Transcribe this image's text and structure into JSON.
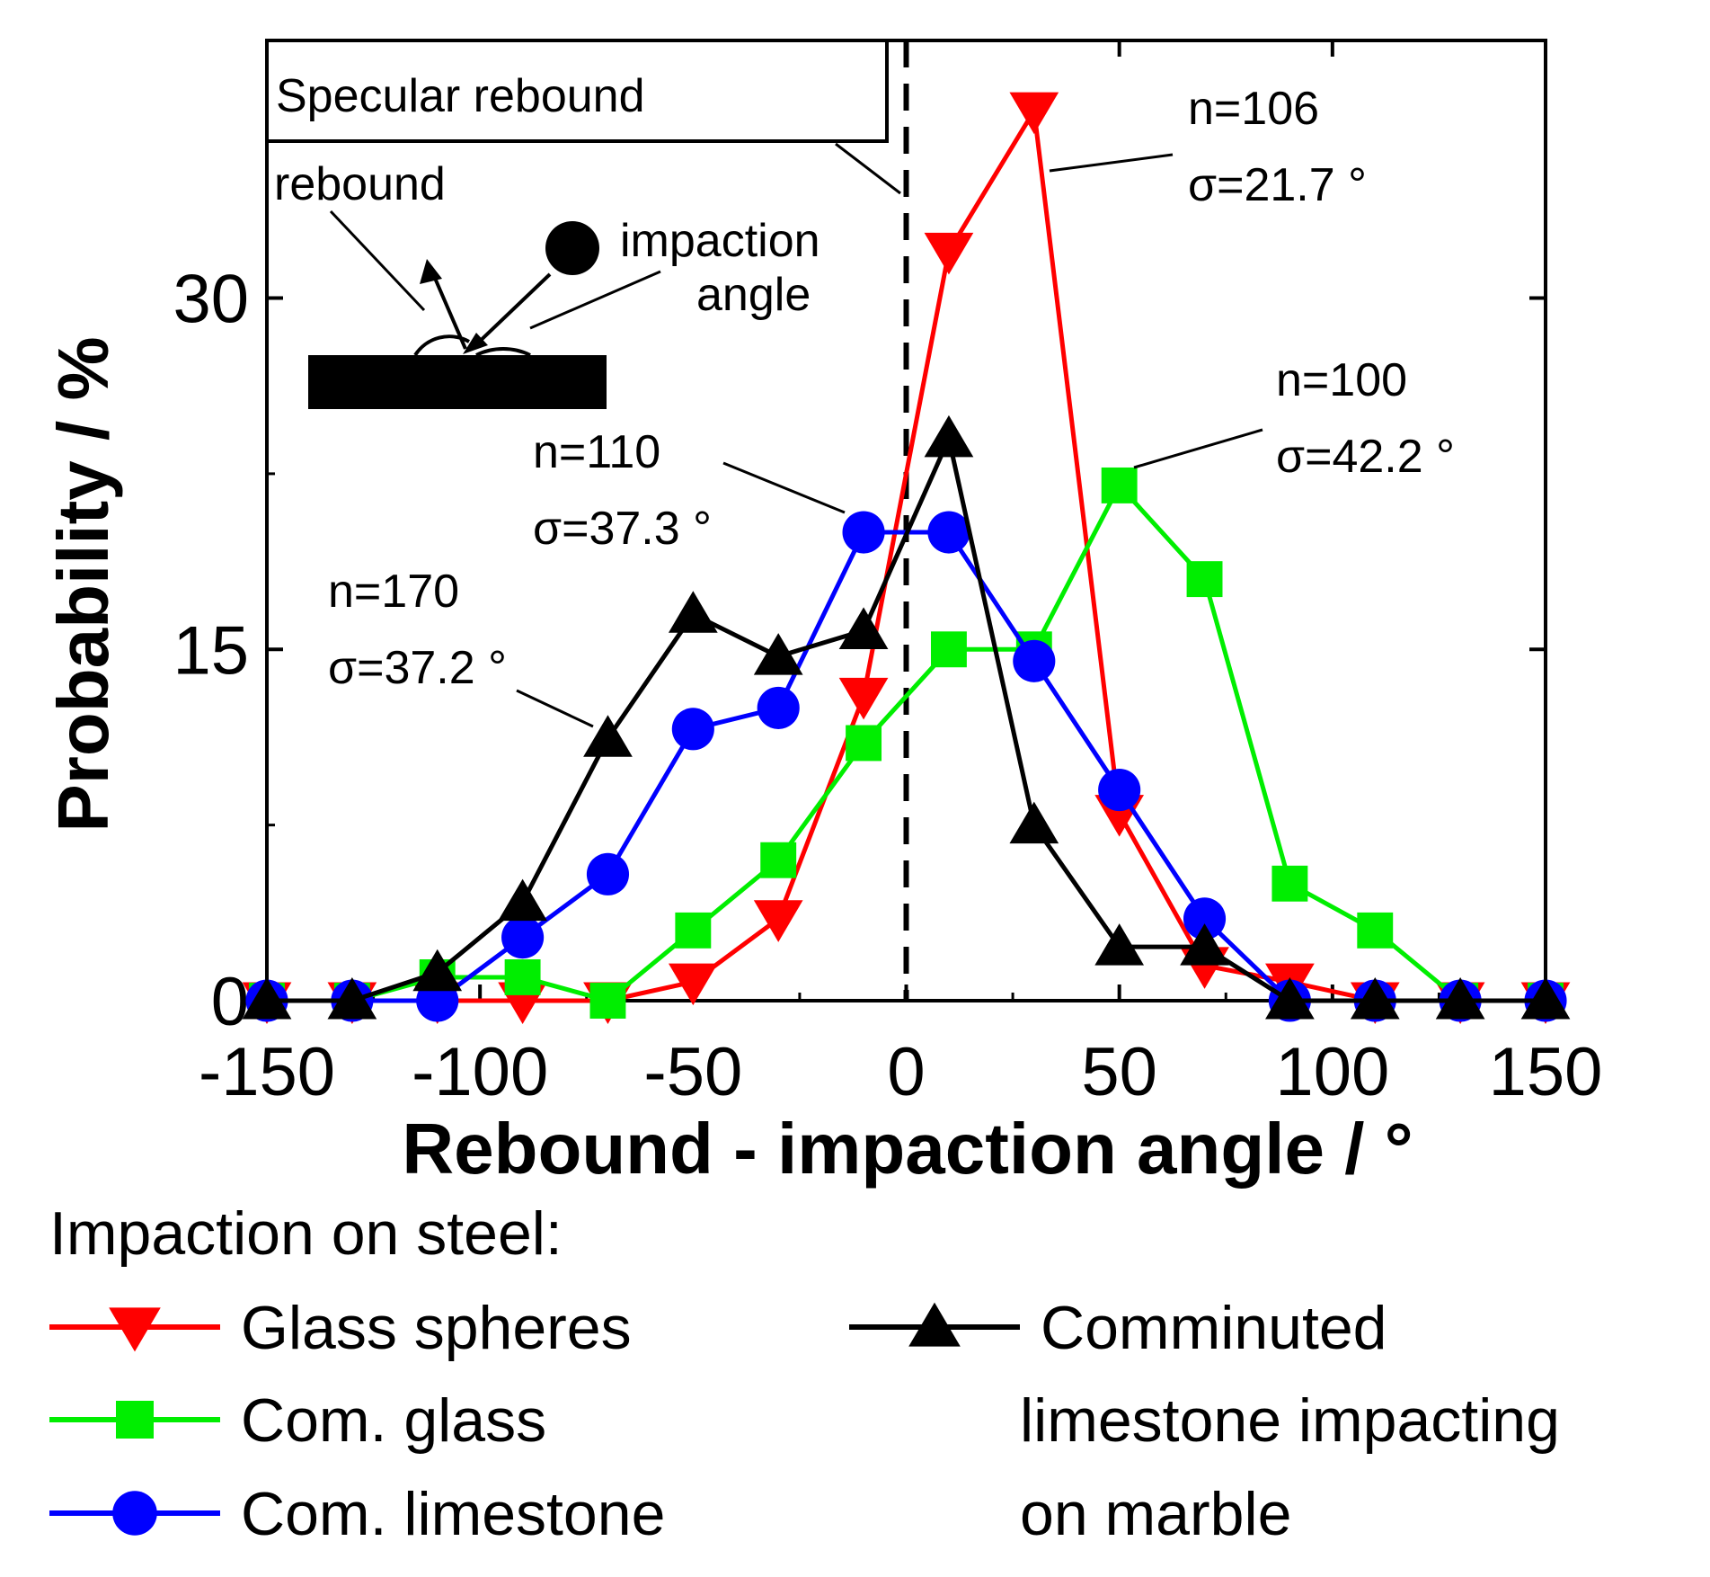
{
  "chart_data": {
    "type": "line",
    "title": "",
    "xlabel": "Rebound - impaction angle / °",
    "ylabel": "Probability / %",
    "xlim": [
      -150,
      150
    ],
    "ylim": [
      0,
      41
    ],
    "xticks": [
      -150,
      -100,
      -50,
      0,
      50,
      100,
      150
    ],
    "yticks": [
      0,
      15,
      30
    ],
    "grid": false,
    "reference_line": {
      "x": 0,
      "style": "dashed"
    },
    "legend": {
      "title": "Impaction on steel:",
      "placement": "below plot",
      "entries": [
        {
          "label": "Glass spheres",
          "series": 0
        },
        {
          "label": "Com. glass",
          "series": 1
        },
        {
          "label": "Com. limestone",
          "series": 2
        },
        {
          "label_lines": [
            "Comminuted",
            "limestone impacting",
            "on marble"
          ],
          "series": 3
        }
      ]
    },
    "series": [
      {
        "name": "Glass spheres",
        "color": "#ff0000",
        "marker": "triangle-down",
        "x": [
          -150,
          -130,
          -110,
          -90,
          -70,
          -50,
          -30,
          -10,
          10,
          30,
          50,
          70,
          90,
          110,
          130,
          150
        ],
        "y": [
          0,
          0,
          0,
          0,
          0,
          0.8,
          3.5,
          13,
          32,
          38,
          8,
          1.5,
          0.8,
          0,
          0,
          0
        ]
      },
      {
        "name": "Com. glass",
        "color": "#00ee00",
        "marker": "square",
        "x": [
          -150,
          -130,
          -110,
          -90,
          -70,
          -50,
          -30,
          -10,
          10,
          30,
          50,
          70,
          90,
          110,
          130,
          150
        ],
        "y": [
          0,
          0,
          1,
          1,
          0,
          3,
          6,
          11,
          15,
          15,
          22,
          18,
          5,
          3,
          0,
          0
        ]
      },
      {
        "name": "Com. limestone",
        "color": "#0000ff",
        "marker": "circle",
        "x": [
          -150,
          -130,
          -110,
          -90,
          -70,
          -50,
          -30,
          -10,
          10,
          30,
          50,
          70,
          90,
          110,
          130,
          150
        ],
        "y": [
          0,
          0,
          0,
          2.7,
          5.4,
          11.6,
          12.5,
          20,
          20,
          14.5,
          9,
          3.5,
          0,
          0,
          0,
          0
        ]
      },
      {
        "name": "Comminuted limestone impacting on marble",
        "color": "#000000",
        "marker": "triangle-up",
        "x": [
          -150,
          -130,
          -110,
          -90,
          -70,
          -50,
          -30,
          -10,
          10,
          30,
          50,
          70,
          90,
          110,
          130,
          150
        ],
        "y": [
          0,
          0,
          1.2,
          4.2,
          11.2,
          16.5,
          14.7,
          15.8,
          24,
          7.5,
          2.3,
          2.3,
          0,
          0,
          0,
          0
        ]
      }
    ],
    "annotations": [
      {
        "lines": [
          "n=106",
          "σ=21.7 °"
        ],
        "series": 0
      },
      {
        "lines": [
          "n=100",
          "σ=42.2 °"
        ],
        "series": 1
      },
      {
        "lines": [
          "n=110",
          "σ=37.3 °"
        ],
        "series": 2
      },
      {
        "lines": [
          "n=170",
          "σ=37.2 °"
        ],
        "series": 3
      }
    ],
    "inset": {
      "box_label": "Specular rebound",
      "rebound_label": "rebound",
      "impaction_label_lines": [
        "impaction",
        "angle"
      ]
    }
  }
}
